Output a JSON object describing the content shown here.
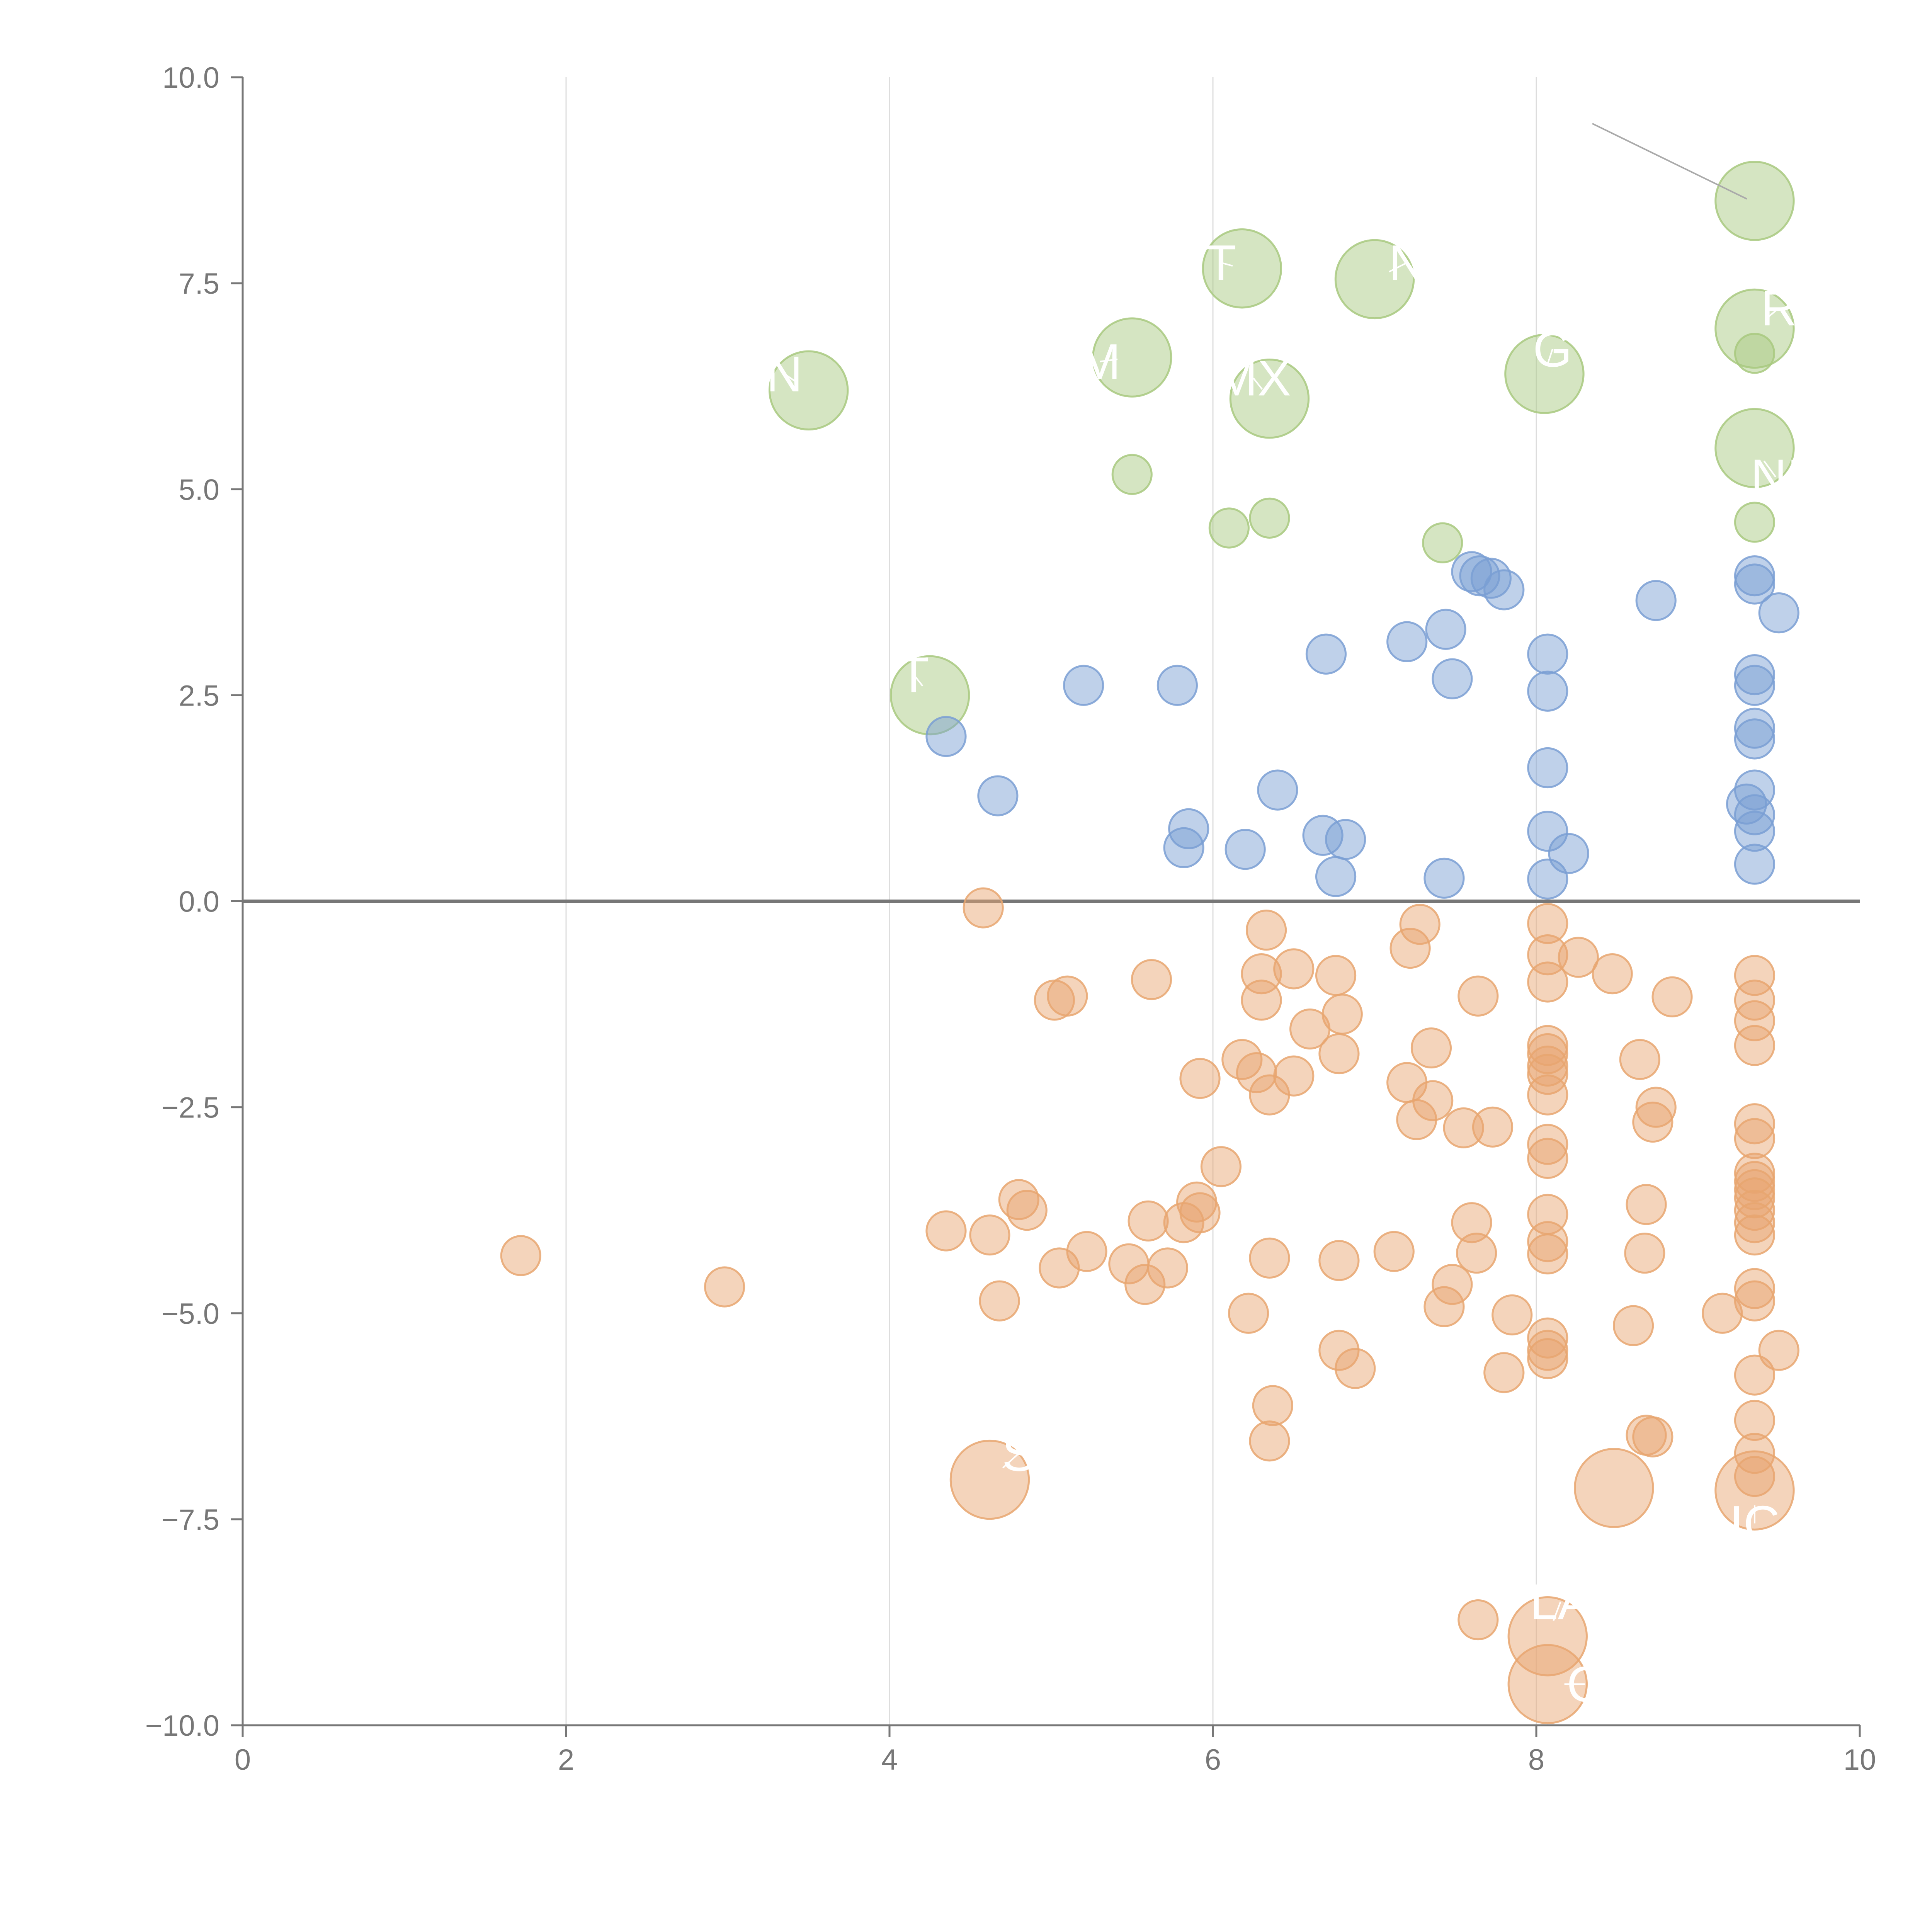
{
  "chart_data": {
    "type": "scatter",
    "xlim": [
      0,
      10
    ],
    "ylim": [
      -10,
      10
    ],
    "x_ticks": [
      0,
      2,
      4,
      6,
      8,
      10
    ],
    "y_ticks": [
      10,
      7.5,
      5,
      2.5,
      0,
      -2.5,
      -5,
      -7.5,
      -10
    ],
    "x_tick_labels": [
      "0",
      "2",
      "4",
      "6",
      "8",
      "10"
    ],
    "y_tick_labels": [
      "10.0",
      "7.5",
      "5.0",
      "2.5",
      "0.0",
      "−2.5",
      "−5.0",
      "−7.5",
      "−10.0"
    ],
    "grid": {
      "x": true,
      "y": false
    },
    "zero_line": 0,
    "colors": {
      "high": "#a8c97f",
      "mid": "#7a9fd4",
      "neg": "#e8a670",
      "axis": "#777777",
      "grid": "#dddddd",
      "annotation": "#ffffff"
    },
    "series": [
      {
        "name": "high",
        "color": "#a8c97f",
        "points": [
          [
            3.5,
            6.2,
            2.2
          ],
          [
            4.25,
            2.5,
            2.2
          ],
          [
            5.5,
            6.6,
            2.2
          ],
          [
            6.18,
            7.68,
            2.2
          ],
          [
            6.35,
            6.1,
            2.2
          ],
          [
            7.0,
            7.55,
            2.2
          ],
          [
            8.05,
            6.4,
            2.2
          ],
          [
            9.35,
            8.5,
            2.2
          ],
          [
            9.35,
            6.95,
            2.2
          ],
          [
            9.35,
            5.5,
            2.2
          ],
          [
            5.5,
            5.18,
            1.1
          ],
          [
            6.1,
            4.53,
            1.1
          ],
          [
            6.35,
            4.65,
            1.1
          ],
          [
            7.42,
            4.35,
            1.1
          ],
          [
            9.35,
            6.65,
            1.1
          ],
          [
            9.35,
            4.6,
            1.1
          ]
        ]
      },
      {
        "name": "mid",
        "color": "#7a9fd4",
        "points": [
          [
            4.35,
            2.0,
            1.1
          ],
          [
            4.67,
            1.28,
            1.1
          ],
          [
            5.2,
            2.62,
            1.1
          ],
          [
            5.78,
            2.62,
            1.1
          ],
          [
            5.85,
            0.88,
            1.1
          ],
          [
            5.82,
            0.65,
            1.1
          ],
          [
            6.2,
            0.63,
            1.1
          ],
          [
            6.4,
            1.35,
            1.1
          ],
          [
            6.68,
            0.8,
            1.1
          ],
          [
            6.7,
            3.0,
            1.1
          ],
          [
            6.76,
            0.3,
            1.1
          ],
          [
            6.82,
            0.75,
            1.1
          ],
          [
            7.2,
            3.15,
            1.1
          ],
          [
            7.44,
            3.3,
            1.1
          ],
          [
            7.43,
            0.28,
            1.1
          ],
          [
            7.48,
            2.7,
            1.1
          ],
          [
            7.6,
            4.0,
            1.1
          ],
          [
            7.65,
            3.95,
            1.1
          ],
          [
            7.72,
            3.92,
            1.1
          ],
          [
            7.8,
            3.78,
            1.1
          ],
          [
            8.07,
            3.0,
            1.1
          ],
          [
            8.07,
            2.55,
            1.1
          ],
          [
            8.07,
            1.62,
            1.1
          ],
          [
            8.07,
            0.85,
            1.1
          ],
          [
            8.07,
            0.27,
            1.1
          ],
          [
            8.2,
            0.58,
            1.1
          ],
          [
            8.74,
            3.65,
            1.1
          ],
          [
            9.35,
            3.95,
            1.1
          ],
          [
            9.35,
            3.85,
            1.1
          ],
          [
            9.35,
            2.75,
            1.1
          ],
          [
            9.35,
            2.62,
            1.1
          ],
          [
            9.35,
            2.1,
            1.1
          ],
          [
            9.35,
            1.97,
            1.1
          ],
          [
            9.35,
            1.35,
            1.1
          ],
          [
            9.3,
            1.18,
            1.1
          ],
          [
            9.35,
            1.05,
            1.1
          ],
          [
            9.35,
            0.85,
            1.1
          ],
          [
            9.35,
            0.45,
            1.1
          ],
          [
            9.5,
            3.5,
            1.1
          ]
        ]
      },
      {
        "name": "neg",
        "color": "#e8a670",
        "points": [
          [
            1.72,
            -4.3,
            1.1
          ],
          [
            2.98,
            -4.68,
            1.1
          ],
          [
            4.35,
            -4.0,
            1.1
          ],
          [
            4.58,
            -0.08,
            1.1
          ],
          [
            4.62,
            -4.05,
            1.1
          ],
          [
            4.68,
            -4.85,
            1.1
          ],
          [
            4.8,
            -3.62,
            1.1
          ],
          [
            4.85,
            -3.75,
            1.1
          ],
          [
            5.02,
            -1.2,
            1.1
          ],
          [
            5.1,
            -1.15,
            1.1
          ],
          [
            5.05,
            -4.45,
            1.1
          ],
          [
            5.22,
            -4.25,
            1.1
          ],
          [
            5.48,
            -4.4,
            1.1
          ],
          [
            5.6,
            -3.88,
            1.1
          ],
          [
            5.58,
            -4.65,
            1.1
          ],
          [
            5.62,
            -0.95,
            1.1
          ],
          [
            5.72,
            -4.45,
            1.1
          ],
          [
            5.82,
            -3.9,
            1.1
          ],
          [
            5.9,
            -3.65,
            1.1
          ],
          [
            5.92,
            -3.78,
            1.1
          ],
          [
            5.92,
            -2.15,
            1.1
          ],
          [
            6.05,
            -3.22,
            1.1
          ],
          [
            6.18,
            -1.92,
            1.1
          ],
          [
            6.22,
            -5.0,
            1.1
          ],
          [
            6.27,
            -2.08,
            1.1
          ],
          [
            6.3,
            -0.88,
            1.1
          ],
          [
            6.3,
            -1.2,
            1.1
          ],
          [
            6.33,
            -0.35,
            1.1
          ],
          [
            6.35,
            -2.35,
            1.1
          ],
          [
            6.35,
            -4.33,
            1.1
          ],
          [
            6.37,
            -6.12,
            1.1
          ],
          [
            6.35,
            -6.55,
            1.1
          ],
          [
            6.5,
            -0.82,
            1.1
          ],
          [
            6.5,
            -2.12,
            1.1
          ],
          [
            6.6,
            -1.55,
            1.1
          ],
          [
            6.76,
            -0.9,
            1.1
          ],
          [
            6.78,
            -1.85,
            1.1
          ],
          [
            6.8,
            -1.37,
            1.1
          ],
          [
            6.78,
            -4.36,
            1.1
          ],
          [
            6.78,
            -5.45,
            1.1
          ],
          [
            6.88,
            -5.67,
            1.1
          ],
          [
            7.12,
            -4.25,
            1.1
          ],
          [
            7.2,
            -2.2,
            1.1
          ],
          [
            7.22,
            -0.57,
            1.1
          ],
          [
            7.28,
            -0.28,
            1.1
          ],
          [
            7.26,
            -2.65,
            1.1
          ],
          [
            7.35,
            -1.78,
            1.1
          ],
          [
            7.36,
            -2.42,
            1.1
          ],
          [
            7.43,
            -4.92,
            1.1
          ],
          [
            7.48,
            -4.65,
            1.1
          ],
          [
            7.55,
            -2.75,
            1.1
          ],
          [
            7.6,
            -3.9,
            1.1
          ],
          [
            7.64,
            -1.15,
            1.1
          ],
          [
            7.63,
            -4.27,
            1.1
          ],
          [
            7.64,
            -8.72,
            1.1
          ],
          [
            7.73,
            -2.74,
            1.1
          ],
          [
            7.8,
            -5.72,
            1.1
          ],
          [
            7.85,
            -5.02,
            1.1
          ],
          [
            8.07,
            -0.27,
            1.1
          ],
          [
            8.07,
            -0.65,
            1.1
          ],
          [
            8.07,
            -0.98,
            1.1
          ],
          [
            8.07,
            -1.75,
            1.1
          ],
          [
            8.07,
            -1.85,
            1.1
          ],
          [
            8.07,
            -2.0,
            1.1
          ],
          [
            8.07,
            -2.1,
            1.1
          ],
          [
            8.07,
            -2.35,
            1.1
          ],
          [
            8.07,
            -2.95,
            1.1
          ],
          [
            8.07,
            -3.12,
            1.1
          ],
          [
            8.07,
            -3.8,
            1.1
          ],
          [
            8.07,
            -4.13,
            1.1
          ],
          [
            8.07,
            -4.28,
            1.1
          ],
          [
            8.07,
            -5.3,
            1.1
          ],
          [
            8.07,
            -5.45,
            1.1
          ],
          [
            8.07,
            -5.55,
            1.1
          ],
          [
            8.26,
            -0.68,
            1.1
          ],
          [
            8.47,
            -0.88,
            1.1
          ],
          [
            8.6,
            -5.15,
            1.1
          ],
          [
            8.64,
            -1.92,
            1.1
          ],
          [
            8.68,
            -3.68,
            1.1
          ],
          [
            8.67,
            -4.27,
            1.1
          ],
          [
            8.68,
            -6.48,
            1.1
          ],
          [
            8.72,
            -6.5,
            1.1
          ],
          [
            8.72,
            -2.68,
            1.1
          ],
          [
            8.74,
            -2.5,
            1.1
          ],
          [
            8.84,
            -1.16,
            1.1
          ],
          [
            9.15,
            -5.0,
            1.1
          ],
          [
            9.35,
            -0.9,
            1.1
          ],
          [
            9.35,
            -1.2,
            1.1
          ],
          [
            9.35,
            -1.45,
            1.1
          ],
          [
            9.35,
            -1.75,
            1.1
          ],
          [
            9.35,
            -2.7,
            1.1
          ],
          [
            9.35,
            -2.88,
            1.1
          ],
          [
            9.35,
            -3.3,
            1.1
          ],
          [
            9.35,
            -3.4,
            1.1
          ],
          [
            9.35,
            -3.5,
            1.1
          ],
          [
            9.35,
            -3.6,
            1.1
          ],
          [
            9.35,
            -3.75,
            1.1
          ],
          [
            9.35,
            -3.9,
            1.1
          ],
          [
            9.35,
            -4.05,
            1.1
          ],
          [
            9.35,
            -4.7,
            1.1
          ],
          [
            9.35,
            -4.85,
            1.1
          ],
          [
            9.35,
            -5.75,
            1.1
          ],
          [
            9.35,
            -6.3,
            1.1
          ],
          [
            9.35,
            -6.7,
            1.1
          ],
          [
            9.35,
            -6.98,
            1.1
          ],
          [
            9.5,
            -5.45,
            1.1
          ],
          [
            4.62,
            -7.02,
            2.2
          ],
          [
            8.48,
            -7.12,
            2.2
          ],
          [
            9.35,
            -7.15,
            2.2
          ],
          [
            8.07,
            -8.92,
            2.2
          ],
          [
            8.07,
            -9.5,
            2.2
          ]
        ]
      }
    ],
    "annotations": [
      {
        "text": "N",
        "x": 3.35,
        "y": 6.4
      },
      {
        "text": "T",
        "x": 4.15,
        "y": 2.75
      },
      {
        "text": "M",
        "x": 5.3,
        "y": 6.55
      },
      {
        "text": "T",
        "x": 6.05,
        "y": 7.75
      },
      {
        "text": "MX",
        "x": 6.25,
        "y": 6.35
      },
      {
        "text": "N",
        "x": 7.2,
        "y": 7.75
      },
      {
        "text": "G",
        "x": 8.1,
        "y": 6.7
      },
      {
        "text": "R",
        "x": 9.5,
        "y": 7.2
      },
      {
        "text": "NI",
        "x": 9.48,
        "y": 5.15
      },
      {
        "text": "S",
        "x": 4.8,
        "y": -6.7
      },
      {
        "text": "IC",
        "x": 9.35,
        "y": -7.55
      },
      {
        "text": "LA",
        "x": 8.15,
        "y": -8.5
      },
      {
        "text": "C",
        "x": 8.3,
        "y": -9.5
      }
    ]
  }
}
